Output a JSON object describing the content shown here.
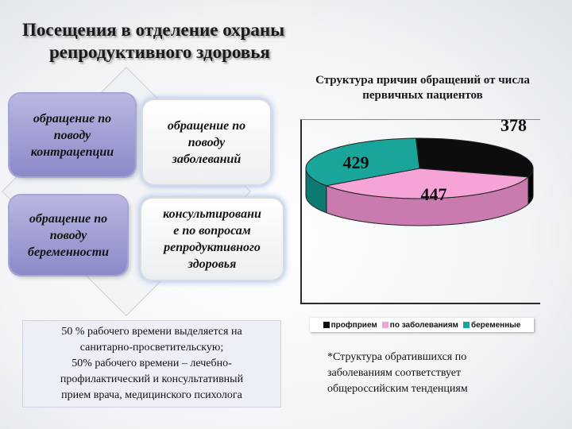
{
  "slide": {
    "title_lines": [
      "Посещения в отделение охраны",
      "репродуктивного здоровья"
    ]
  },
  "boxes": {
    "contraception": [
      "обращение по",
      "поводу",
      "контрацепции"
    ],
    "diseases": [
      "обращение по",
      "поводу",
      "заболеваний"
    ],
    "pregnancy": [
      "обращение по",
      "поводу",
      "беременности"
    ],
    "consulting": [
      "консультировани",
      "е по вопросам",
      "репродуктивного",
      "здоровья"
    ]
  },
  "notes": {
    "left_lines": [
      "50 % рабочего времени выделяется на",
      "санитарно-просветительскую;",
      "50% рабочего времени – лечебно-",
      "профилактический и консультативный",
      "прием врача, медицинского психолога"
    ],
    "right_lines": [
      "*Структура обратившихся по",
      "заболеваниям соответствует",
      "общероссийским тенденциям"
    ]
  },
  "chart_data": {
    "type": "pie",
    "title": "Структура причин обращений от числа первичных пациентов",
    "categories": [
      "профприем",
      "по заболеваниям",
      "беременные"
    ],
    "values": [
      378,
      447,
      429
    ],
    "data_labels": [
      "378",
      "447",
      "429"
    ],
    "colors": [
      "#0d0d0d",
      "#f6a3d8",
      "#1aa59a"
    ],
    "legend_position": "bottom"
  }
}
